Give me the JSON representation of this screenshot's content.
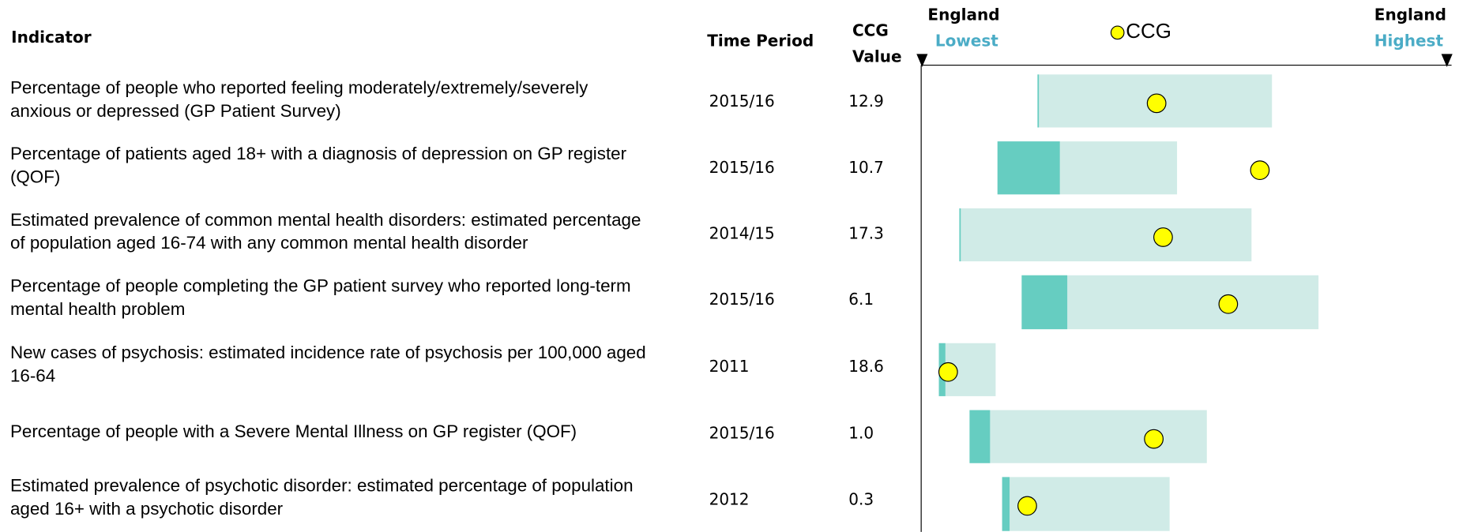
{
  "header": {
    "indicator": "Indicator",
    "time_period": "Time Period",
    "ccg_value": [
      "CCG",
      "Value"
    ],
    "england_lowest": [
      "England",
      "Lowest"
    ],
    "legend": "CCG",
    "england_highest": [
      "England",
      "Highest"
    ]
  },
  "rows": [
    {
      "indicator": [
        "Percentage of people who reported feeling moderately/extremely/severely",
        "anxious or depressed (GP Patient Survey)"
      ],
      "period": "2015/16",
      "value": "12.9"
    },
    {
      "indicator": [
        "Percentage of patients aged 18+ with a diagnosis of depression on GP register",
        "(QOF)"
      ],
      "period": "2015/16",
      "value": "10.7"
    },
    {
      "indicator": [
        "Estimated prevalence of common mental health disorders: estimated percentage",
        "of population aged 16-74 with any common mental health disorder"
      ],
      "period": "2014/15",
      "value": "17.3"
    },
    {
      "indicator": [
        "Percentage of people completing the GP patient survey who reported long-term",
        "mental health problem"
      ],
      "period": "2015/16",
      "value": "6.1"
    },
    {
      "indicator": [
        "New cases of psychosis: estimated incidence rate of psychosis per 100,000 aged",
        "16-64"
      ],
      "period": "2011",
      "value": "18.6"
    },
    {
      "indicator": [
        "Percentage of people with a Severe Mental Illness on GP register (QOF)"
      ],
      "period": "2015/16",
      "value": "1.0"
    },
    {
      "indicator": [
        "Estimated prevalence of psychotic disorder: estimated percentage of population",
        "aged 16+ with a psychotic disorder"
      ],
      "period": "2012",
      "value": "0.3"
    }
  ]
}
